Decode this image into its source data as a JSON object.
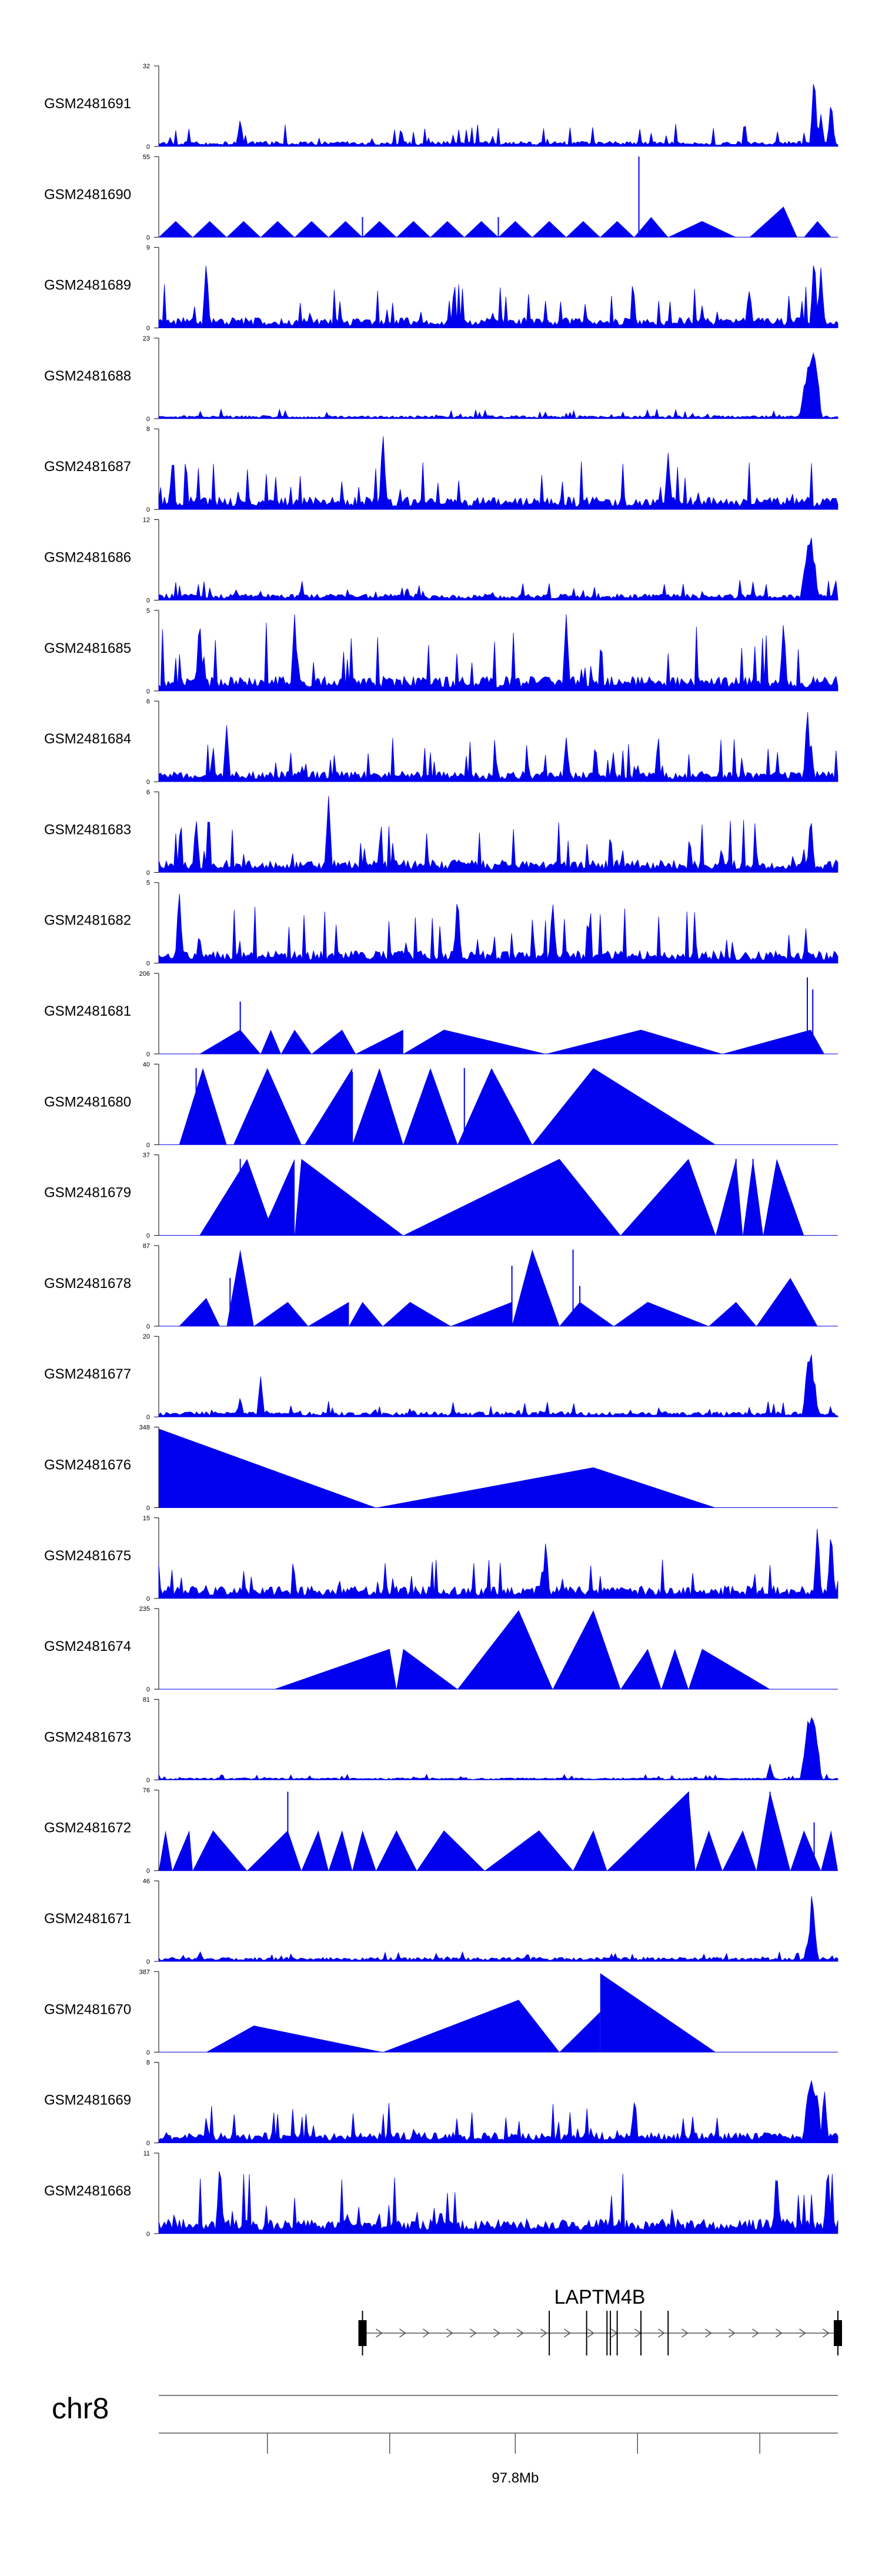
{
  "chart_data": {
    "type": "area",
    "title": "",
    "colors": {
      "signal": "#0000ee",
      "axis": "#000000",
      "structure": "#555555"
    },
    "tracks": [
      {
        "name": "GSM2481691",
        "ymax": "32",
        "ymin": "0",
        "style": "noise",
        "base": 0.05,
        "spike": 0.28,
        "peaks": [
          [
            0.965,
            0.95
          ],
          [
            0.975,
            0.4
          ],
          [
            0.99,
            0.6
          ],
          [
            0.12,
            0.35
          ]
        ]
      },
      {
        "name": "GSM2481690",
        "ymax": "55",
        "ymin": "0",
        "style": "tri",
        "tris": [
          [
            0.0,
            0.025,
            0.05,
            0.2
          ],
          [
            0.05,
            0.075,
            0.1,
            0.2
          ],
          [
            0.1,
            0.125,
            0.15,
            0.2
          ],
          [
            0.15,
            0.175,
            0.2,
            0.2
          ],
          [
            0.2,
            0.225,
            0.25,
            0.2
          ],
          [
            0.25,
            0.275,
            0.3,
            0.2
          ],
          [
            0.3,
            0.325,
            0.35,
            0.2
          ],
          [
            0.35,
            0.375,
            0.4,
            0.2
          ],
          [
            0.4,
            0.425,
            0.45,
            0.2
          ],
          [
            0.45,
            0.475,
            0.5,
            0.2
          ],
          [
            0.5,
            0.525,
            0.55,
            0.2
          ],
          [
            0.55,
            0.575,
            0.6,
            0.2
          ],
          [
            0.6,
            0.625,
            0.65,
            0.2
          ],
          [
            0.65,
            0.675,
            0.7,
            0.2
          ],
          [
            0.7,
            0.725,
            0.75,
            0.25
          ],
          [
            0.75,
            0.8,
            0.85,
            0.2
          ],
          [
            0.87,
            0.92,
            0.94,
            0.38
          ],
          [
            0.95,
            0.97,
            0.99,
            0.2
          ]
        ],
        "spikes": [
          [
            0.707,
            1.0
          ],
          [
            0.5,
            0.25
          ],
          [
            0.3,
            0.25
          ]
        ]
      },
      {
        "name": "GSM2481689",
        "ymax": "9",
        "ymin": "0",
        "style": "noise",
        "base": 0.1,
        "spike": 0.55,
        "peaks": [
          [
            0.07,
            0.85
          ],
          [
            0.965,
            0.95
          ],
          [
            0.975,
            0.75
          ],
          [
            0.87,
            0.5
          ]
        ]
      },
      {
        "name": "GSM2481688",
        "ymax": "23",
        "ymin": "0",
        "style": "noise",
        "base": 0.03,
        "spike": 0.12,
        "peaks": [
          [
            0.955,
            0.7
          ],
          [
            0.96,
            0.9
          ],
          [
            0.965,
            1.0
          ],
          [
            0.97,
            0.6
          ],
          [
            0.95,
            0.4
          ]
        ]
      },
      {
        "name": "GSM2481687",
        "ymax": "8",
        "ymin": "0",
        "style": "noise",
        "base": 0.12,
        "spike": 0.6,
        "peaks": [
          [
            0.33,
            1.0
          ],
          [
            0.75,
            0.7
          ],
          [
            0.02,
            0.6
          ]
        ]
      },
      {
        "name": "GSM2481686",
        "ymax": "12",
        "ymin": "0",
        "style": "noise",
        "base": 0.06,
        "spike": 0.25,
        "peaks": [
          [
            0.955,
            0.75
          ],
          [
            0.96,
            0.95
          ],
          [
            0.965,
            0.6
          ],
          [
            0.95,
            0.35
          ]
        ]
      },
      {
        "name": "GSM2481685",
        "ymax": "5",
        "ymin": "0",
        "style": "noise",
        "base": 0.14,
        "spike": 0.85,
        "peaks": [
          [
            0.06,
            0.95
          ],
          [
            0.2,
            0.95
          ],
          [
            0.6,
            0.95
          ],
          [
            0.92,
            0.9
          ]
        ]
      },
      {
        "name": "GSM2481684",
        "ymax": "6",
        "ymin": "0",
        "style": "noise",
        "base": 0.1,
        "spike": 0.55,
        "peaks": [
          [
            0.955,
            0.95
          ],
          [
            0.96,
            0.55
          ],
          [
            0.1,
            0.7
          ],
          [
            0.6,
            0.55
          ]
        ]
      },
      {
        "name": "GSM2481683",
        "ymax": "6",
        "ymin": "0",
        "style": "noise",
        "base": 0.12,
        "spike": 0.65,
        "peaks": [
          [
            0.25,
            0.95
          ],
          [
            0.055,
            0.7
          ],
          [
            0.96,
            0.75
          ]
        ]
      },
      {
        "name": "GSM2481682",
        "ymax": "5",
        "ymin": "0",
        "style": "noise",
        "base": 0.12,
        "spike": 0.7,
        "peaks": [
          [
            0.03,
            0.95
          ],
          [
            0.44,
            0.9
          ],
          [
            0.58,
            0.8
          ]
        ]
      },
      {
        "name": "GSM2481681",
        "ymax": "206",
        "ymin": "0",
        "style": "tri",
        "tris": [
          [
            0.06,
            0.12,
            0.15,
            0.3
          ],
          [
            0.15,
            0.165,
            0.18,
            0.3
          ],
          [
            0.18,
            0.2,
            0.225,
            0.3
          ],
          [
            0.225,
            0.27,
            0.29,
            0.3
          ],
          [
            0.29,
            0.36,
            0.36,
            0.3
          ],
          [
            0.36,
            0.42,
            0.57,
            0.3
          ],
          [
            0.57,
            0.71,
            0.83,
            0.3
          ],
          [
            0.83,
            0.96,
            0.98,
            0.3
          ]
        ],
        "spikes": [
          [
            0.12,
            0.65
          ],
          [
            0.955,
            0.95
          ],
          [
            0.963,
            0.8
          ]
        ]
      },
      {
        "name": "GSM2481680",
        "ymax": "40",
        "ymin": "0",
        "style": "tri",
        "tris": [
          [
            0.03,
            0.065,
            0.1,
            0.95
          ],
          [
            0.11,
            0.16,
            0.21,
            0.95
          ],
          [
            0.215,
            0.285,
            0.285,
            0.95
          ],
          [
            0.285,
            0.325,
            0.36,
            0.95
          ],
          [
            0.36,
            0.4,
            0.44,
            0.95
          ],
          [
            0.44,
            0.49,
            0.55,
            0.95
          ],
          [
            0.55,
            0.64,
            0.82,
            0.95
          ]
        ],
        "spikes": [
          [
            0.055,
            0.95
          ],
          [
            0.07,
            0.8
          ],
          [
            0.285,
            0.9
          ],
          [
            0.45,
            0.95
          ]
        ]
      },
      {
        "name": "GSM2481679",
        "ymax": "37",
        "ymin": "0",
        "style": "tri",
        "tris": [
          [
            0.06,
            0.13,
            0.17,
            0.95
          ],
          [
            0.15,
            0.2,
            0.2,
            0.95
          ],
          [
            0.2,
            0.21,
            0.36,
            0.95
          ],
          [
            0.36,
            0.59,
            0.68,
            0.95
          ],
          [
            0.68,
            0.78,
            0.82,
            0.95
          ],
          [
            0.82,
            0.85,
            0.86,
            0.95
          ],
          [
            0.86,
            0.875,
            0.89,
            0.95
          ],
          [
            0.89,
            0.91,
            0.95,
            0.95
          ]
        ],
        "spikes": [
          [
            0.12,
            0.95
          ],
          [
            0.13,
            0.85
          ],
          [
            0.85,
            0.95
          ],
          [
            0.875,
            0.95
          ]
        ]
      },
      {
        "name": "GSM2481678",
        "ymax": "87",
        "ymin": "0",
        "style": "tri",
        "tris": [
          [
            0.03,
            0.07,
            0.09,
            0.35
          ],
          [
            0.1,
            0.12,
            0.14,
            0.95
          ],
          [
            0.14,
            0.19,
            0.22,
            0.3
          ],
          [
            0.22,
            0.28,
            0.28,
            0.3
          ],
          [
            0.28,
            0.3,
            0.33,
            0.3
          ],
          [
            0.33,
            0.37,
            0.43,
            0.3
          ],
          [
            0.43,
            0.52,
            0.52,
            0.3
          ],
          [
            0.52,
            0.55,
            0.59,
            0.95
          ],
          [
            0.59,
            0.62,
            0.67,
            0.3
          ],
          [
            0.67,
            0.72,
            0.81,
            0.3
          ],
          [
            0.81,
            0.85,
            0.88,
            0.3
          ],
          [
            0.88,
            0.93,
            0.97,
            0.6
          ]
        ],
        "spikes": [
          [
            0.105,
            0.6
          ],
          [
            0.52,
            0.75
          ],
          [
            0.61,
            0.95
          ],
          [
            0.62,
            0.5
          ]
        ]
      },
      {
        "name": "GSM2481677",
        "ymax": "20",
        "ymin": "0",
        "style": "noise",
        "base": 0.05,
        "spike": 0.22,
        "peaks": [
          [
            0.955,
            0.75
          ],
          [
            0.96,
            0.95
          ],
          [
            0.965,
            0.55
          ],
          [
            0.15,
            0.5
          ],
          [
            0.12,
            0.25
          ]
        ]
      },
      {
        "name": "GSM2481676",
        "ymax": "348",
        "ymin": "0",
        "style": "tri",
        "tris": [
          [
            0.0,
            0.0,
            0.32,
            0.98
          ],
          [
            0.32,
            0.64,
            0.82,
            0.5
          ]
        ],
        "spikes": []
      },
      {
        "name": "GSM2481675",
        "ymax": "15",
        "ymin": "0",
        "style": "noise",
        "base": 0.12,
        "spike": 0.5,
        "peaks": [
          [
            0.97,
            0.95
          ],
          [
            0.99,
            0.9
          ],
          [
            0.57,
            0.75
          ]
        ]
      },
      {
        "name": "GSM2481674",
        "ymax": "235",
        "ymin": "0",
        "style": "tri",
        "tris": [
          [
            0.17,
            0.34,
            0.35,
            0.5
          ],
          [
            0.35,
            0.36,
            0.44,
            0.5
          ],
          [
            0.44,
            0.53,
            0.58,
            0.98
          ],
          [
            0.58,
            0.64,
            0.68,
            0.98
          ],
          [
            0.68,
            0.72,
            0.74,
            0.5
          ],
          [
            0.74,
            0.76,
            0.78,
            0.5
          ],
          [
            0.78,
            0.8,
            0.9,
            0.5
          ]
        ],
        "spikes": []
      },
      {
        "name": "GSM2481673",
        "ymax": "81",
        "ymin": "0",
        "style": "noise",
        "base": 0.02,
        "spike": 0.07,
        "peaks": [
          [
            0.955,
            0.8
          ],
          [
            0.96,
            0.95
          ],
          [
            0.965,
            0.9
          ],
          [
            0.97,
            0.5
          ],
          [
            0.95,
            0.3
          ],
          [
            0.9,
            0.2
          ]
        ]
      },
      {
        "name": "GSM2481672",
        "ymax": "76",
        "ymin": "0",
        "style": "tri",
        "tris": [
          [
            0.0,
            0.01,
            0.02,
            0.5
          ],
          [
            0.02,
            0.045,
            0.05,
            0.5
          ],
          [
            0.05,
            0.08,
            0.13,
            0.5
          ],
          [
            0.13,
            0.19,
            0.21,
            0.5
          ],
          [
            0.21,
            0.235,
            0.25,
            0.5
          ],
          [
            0.25,
            0.27,
            0.285,
            0.5
          ],
          [
            0.285,
            0.3,
            0.32,
            0.5
          ],
          [
            0.32,
            0.35,
            0.38,
            0.5
          ],
          [
            0.38,
            0.42,
            0.48,
            0.5
          ],
          [
            0.48,
            0.56,
            0.61,
            0.5
          ],
          [
            0.61,
            0.64,
            0.66,
            0.5
          ],
          [
            0.66,
            0.78,
            0.79,
            0.98
          ],
          [
            0.79,
            0.81,
            0.83,
            0.5
          ],
          [
            0.83,
            0.86,
            0.88,
            0.5
          ],
          [
            0.88,
            0.9,
            0.93,
            0.98
          ],
          [
            0.93,
            0.95,
            0.975,
            0.5
          ],
          [
            0.975,
            0.99,
            1.0,
            0.5
          ]
        ],
        "spikes": [
          [
            0.19,
            0.98
          ],
          [
            0.78,
            0.98
          ],
          [
            0.9,
            0.98
          ],
          [
            0.965,
            0.6
          ]
        ]
      },
      {
        "name": "GSM2481671",
        "ymax": "46",
        "ymin": "0",
        "style": "noise",
        "base": 0.04,
        "spike": 0.12,
        "peaks": [
          [
            0.962,
            0.95
          ],
          [
            0.965,
            0.5
          ],
          [
            0.955,
            0.25
          ]
        ]
      },
      {
        "name": "GSM2481670",
        "ymax": "387",
        "ymin": "0",
        "style": "tri",
        "tris": [
          [
            0.07,
            0.14,
            0.33,
            0.33
          ],
          [
            0.33,
            0.53,
            0.59,
            0.65
          ],
          [
            0.59,
            0.65,
            0.65,
            0.5
          ],
          [
            0.65,
            0.65,
            0.82,
            0.98
          ]
        ],
        "spikes": []
      },
      {
        "name": "GSM2481669",
        "ymax": "8",
        "ymin": "0",
        "style": "noise",
        "base": 0.1,
        "spike": 0.5,
        "peaks": [
          [
            0.96,
            0.95
          ],
          [
            0.965,
            0.8
          ],
          [
            0.955,
            0.65
          ],
          [
            0.97,
            0.65
          ],
          [
            0.98,
            0.7
          ],
          [
            0.7,
            0.5
          ]
        ]
      },
      {
        "name": "GSM2481668",
        "ymax": "11",
        "ymin": "0",
        "style": "noise",
        "base": 0.14,
        "spike": 0.75,
        "peaks": [
          [
            0.09,
            0.95
          ],
          [
            0.91,
            0.8
          ],
          [
            0.985,
            0.9
          ]
        ]
      }
    ],
    "gene": {
      "name": "LAPTM4B",
      "start_frac": 0.3,
      "end_frac": 1.0,
      "exons": [
        0.3,
        0.575,
        0.63,
        0.66,
        0.665,
        0.675,
        0.71,
        0.75,
        1.0
      ]
    },
    "chromosome": "chr8",
    "axis": {
      "ticks": [
        0.16,
        0.34,
        0.525,
        0.705,
        0.885
      ],
      "labelled_tick": 0.525,
      "label": "97.8Mb"
    }
  }
}
